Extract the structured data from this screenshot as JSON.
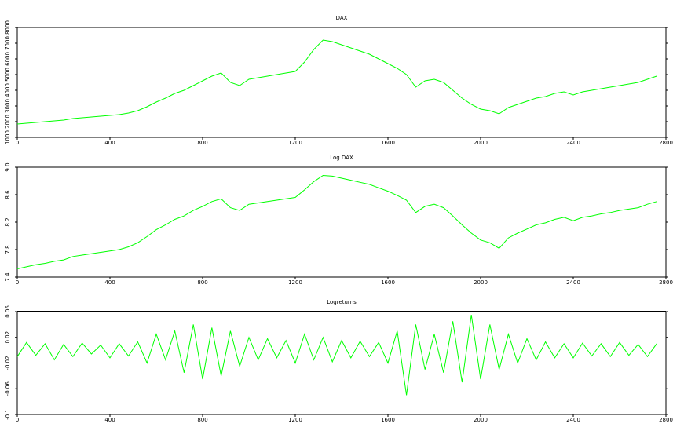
{
  "chart_data": [
    {
      "type": "line",
      "title": "DAX",
      "color": "#00ff00",
      "x": [
        0,
        40,
        80,
        120,
        160,
        200,
        240,
        280,
        320,
        360,
        400,
        440,
        480,
        520,
        560,
        600,
        640,
        680,
        720,
        760,
        800,
        840,
        880,
        920,
        960,
        1000,
        1040,
        1080,
        1120,
        1160,
        1200,
        1240,
        1280,
        1320,
        1360,
        1400,
        1440,
        1480,
        1520,
        1560,
        1600,
        1640,
        1680,
        1720,
        1760,
        1800,
        1840,
        1880,
        1920,
        1960,
        2000,
        2040,
        2080,
        2120,
        2160,
        2200,
        2240,
        2280,
        2320,
        2360,
        2400,
        2440,
        2480,
        2520,
        2560,
        2600,
        2640,
        2680,
        2720,
        2760
      ],
      "values": [
        1850,
        1900,
        1950,
        2000,
        2050,
        2100,
        2200,
        2250,
        2300,
        2350,
        2400,
        2450,
        2550,
        2700,
        2950,
        3250,
        3500,
        3800,
        4000,
        4300,
        4600,
        4900,
        5100,
        4500,
        4300,
        4700,
        4800,
        4900,
        5000,
        5100,
        5200,
        5800,
        6600,
        7200,
        7100,
        6900,
        6700,
        6500,
        6300,
        6000,
        5700,
        5400,
        5000,
        4200,
        4600,
        4700,
        4500,
        4000,
        3500,
        3100,
        2800,
        2700,
        2500,
        2900,
        3100,
        3300,
        3500,
        3600,
        3800,
        3900,
        3700,
        3900,
        4000,
        4100,
        4200,
        4300,
        4400,
        4500,
        4700,
        4900
      ],
      "xlim": [
        0,
        2800
      ],
      "xticks": [
        0,
        400,
        800,
        1200,
        1600,
        2000,
        2400,
        2800
      ],
      "ylim": [
        1000,
        8000
      ],
      "yticks": [
        1000,
        2000,
        3000,
        4000,
        5000,
        6000,
        7000,
        8000
      ]
    },
    {
      "type": "line",
      "title": "Log DAX",
      "color": "#00ff00",
      "x": [
        0,
        40,
        80,
        120,
        160,
        200,
        240,
        280,
        320,
        360,
        400,
        440,
        480,
        520,
        560,
        600,
        640,
        680,
        720,
        760,
        800,
        840,
        880,
        920,
        960,
        1000,
        1040,
        1080,
        1120,
        1160,
        1200,
        1240,
        1280,
        1320,
        1360,
        1400,
        1440,
        1480,
        1520,
        1560,
        1600,
        1640,
        1680,
        1720,
        1760,
        1800,
        1840,
        1880,
        1920,
        1960,
        2000,
        2040,
        2080,
        2120,
        2160,
        2200,
        2240,
        2280,
        2320,
        2360,
        2400,
        2440,
        2480,
        2520,
        2560,
        2600,
        2640,
        2680,
        2720,
        2760
      ],
      "values": [
        7.52,
        7.55,
        7.58,
        7.6,
        7.63,
        7.65,
        7.7,
        7.72,
        7.74,
        7.76,
        7.78,
        7.8,
        7.84,
        7.9,
        7.99,
        8.09,
        8.16,
        8.24,
        8.29,
        8.37,
        8.43,
        8.5,
        8.54,
        8.41,
        8.37,
        8.46,
        8.48,
        8.5,
        8.52,
        8.54,
        8.56,
        8.67,
        8.79,
        8.88,
        8.87,
        8.84,
        8.81,
        8.78,
        8.75,
        8.7,
        8.65,
        8.59,
        8.52,
        8.34,
        8.43,
        8.46,
        8.41,
        8.29,
        8.16,
        8.04,
        7.94,
        7.9,
        7.82,
        7.97,
        8.04,
        8.1,
        8.16,
        8.19,
        8.24,
        8.27,
        8.22,
        8.27,
        8.29,
        8.32,
        8.34,
        8.37,
        8.39,
        8.41,
        8.46,
        8.5
      ],
      "xlim": [
        0,
        2800
      ],
      "xticks": [
        0,
        400,
        800,
        1200,
        1600,
        2000,
        2400,
        2800
      ],
      "ylim": [
        7.4,
        9.0
      ],
      "yticks": [
        7.4,
        7.8,
        8.2,
        8.6,
        {
          "value": 9.0,
          "label": "9.0"
        }
      ]
    },
    {
      "type": "line",
      "title": "Logreturns",
      "color": "#00ff00",
      "x": [
        0,
        40,
        80,
        120,
        160,
        200,
        240,
        280,
        320,
        360,
        400,
        440,
        480,
        520,
        560,
        600,
        640,
        680,
        720,
        760,
        800,
        840,
        880,
        920,
        960,
        1000,
        1040,
        1080,
        1120,
        1160,
        1200,
        1240,
        1280,
        1320,
        1360,
        1400,
        1440,
        1480,
        1520,
        1560,
        1600,
        1640,
        1680,
        1720,
        1760,
        1800,
        1840,
        1880,
        1920,
        1960,
        2000,
        2040,
        2080,
        2120,
        2160,
        2200,
        2240,
        2280,
        2320,
        2360,
        2400,
        2440,
        2480,
        2520,
        2560,
        2600,
        2640,
        2680,
        2720,
        2760
      ],
      "values": [
        -0.01,
        0.012,
        -0.008,
        0.01,
        -0.015,
        0.009,
        -0.01,
        0.011,
        -0.006,
        0.008,
        -0.012,
        0.01,
        -0.009,
        0.013,
        -0.02,
        0.025,
        -0.015,
        0.03,
        -0.035,
        0.04,
        -0.045,
        0.035,
        -0.04,
        0.03,
        -0.025,
        0.02,
        -0.015,
        0.018,
        -0.012,
        0.015,
        -0.02,
        0.025,
        -0.015,
        0.02,
        -0.018,
        0.015,
        -0.012,
        0.014,
        -0.01,
        0.012,
        -0.02,
        0.03,
        -0.07,
        0.04,
        -0.03,
        0.025,
        -0.035,
        0.045,
        -0.05,
        0.055,
        -0.045,
        0.04,
        -0.03,
        0.025,
        -0.02,
        0.018,
        -0.015,
        0.013,
        -0.012,
        0.01,
        -0.012,
        0.011,
        -0.009,
        0.01,
        -0.01,
        0.012,
        -0.008,
        0.009,
        -0.01,
        0.01
      ],
      "xlim": [
        0,
        2800
      ],
      "xticks": [
        0,
        400,
        800,
        1200,
        1600,
        2000,
        2400,
        2800
      ],
      "ylim": [
        -0.1,
        0.06
      ],
      "yticks": [
        -0.1,
        -0.06,
        -0.02,
        0.02,
        0.06
      ]
    }
  ]
}
